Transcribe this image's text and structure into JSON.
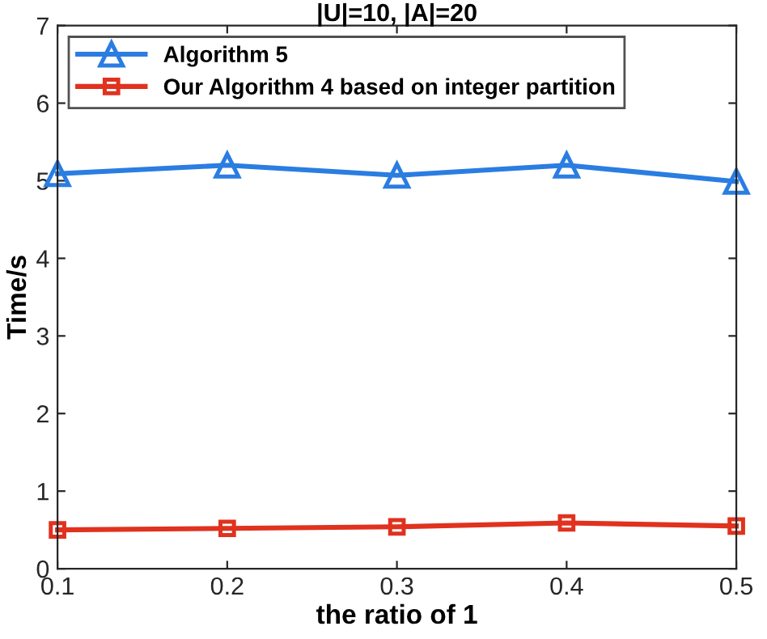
{
  "chart_data": {
    "type": "line",
    "title": "|U|=10, |A|=20",
    "xlabel": "the ratio of 1",
    "ylabel": "Time/s",
    "x": [
      0.1,
      0.2,
      0.3,
      0.4,
      0.5
    ],
    "series": [
      {
        "name": "Algorithm 5",
        "color": "#2a7de1",
        "values": [
          5.09,
          5.2,
          5.07,
          5.2,
          4.99
        ],
        "marker": "triangle"
      },
      {
        "name": "Our Algorithm 4 based on integer partition",
        "color": "#e0321e",
        "values": [
          0.5,
          0.52,
          0.54,
          0.59,
          0.55
        ],
        "marker": "square"
      }
    ],
    "xlim": [
      0.1,
      0.5
    ],
    "xticks": [
      0.1,
      0.2,
      0.3,
      0.4,
      0.5
    ],
    "ylim": [
      0,
      7
    ],
    "yticks": [
      0,
      1,
      2,
      3,
      4,
      5,
      6,
      7
    ],
    "legend": "top left",
    "grid": false,
    "line_style": "solid"
  }
}
